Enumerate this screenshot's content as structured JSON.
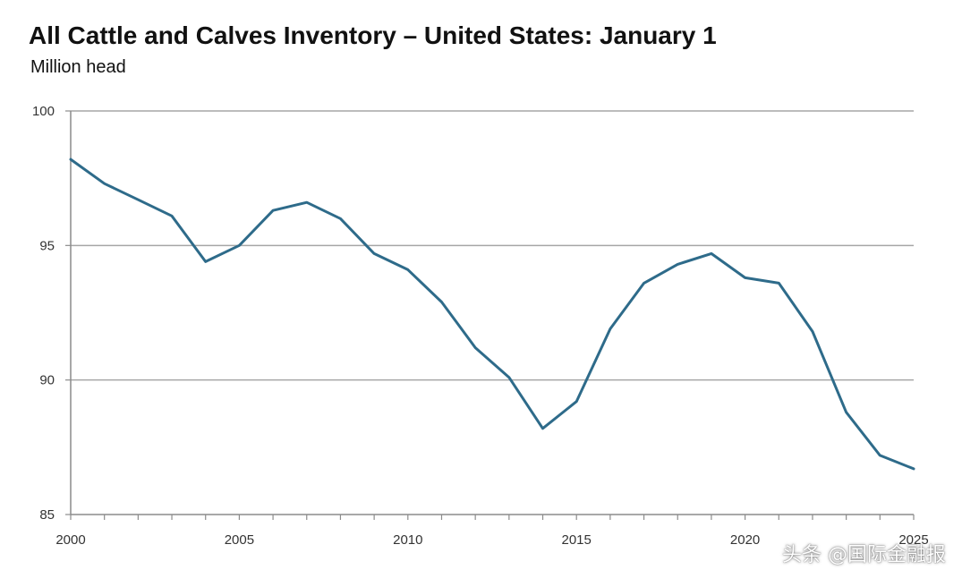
{
  "chart_data": {
    "type": "line",
    "title": "All Cattle and Calves Inventory – United States: January 1",
    "subtitle": "Million head",
    "xlabel": "",
    "ylabel": "",
    "x": [
      2000,
      2001,
      2002,
      2003,
      2004,
      2005,
      2006,
      2007,
      2008,
      2009,
      2010,
      2011,
      2012,
      2013,
      2014,
      2015,
      2016,
      2017,
      2018,
      2019,
      2020,
      2021,
      2022,
      2023,
      2024,
      2025
    ],
    "series": [
      {
        "values": [
          98.2,
          97.3,
          96.7,
          96.1,
          94.4,
          95.0,
          96.3,
          96.6,
          96.0,
          94.7,
          94.1,
          92.9,
          91.2,
          90.1,
          88.2,
          89.2,
          91.9,
          93.6,
          94.3,
          94.7,
          93.8,
          93.6,
          91.8,
          88.8,
          87.2,
          86.7
        ],
        "color": "#2e6b8a"
      }
    ],
    "xlim": [
      2000,
      2025
    ],
    "ylim": [
      85,
      100
    ],
    "x_ticks": [
      "2000",
      "2005",
      "2010",
      "2015",
      "2020",
      "2025"
    ],
    "y_ticks": [
      "85",
      "90",
      "95",
      "100"
    ],
    "grid": "horizontal",
    "legend": "none"
  },
  "watermark": "头条 @国际金融报"
}
